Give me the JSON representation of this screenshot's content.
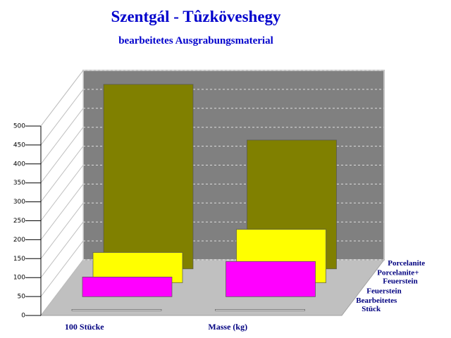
{
  "chart_data": {
    "type": "bar3d",
    "title": "Szentgál - Tûzköveshegy",
    "subtitle": "bearbeitetes Ausgrabungsmaterial",
    "categories": [
      "100 Stücke",
      "Masse (kg)"
    ],
    "series": [
      {
        "name": "Porcelanite",
        "color": "#808000",
        "values": [
          487,
          340
        ]
      },
      {
        "name": "Porcelanite+ Feuerstein",
        "color": "#ffff00",
        "values": [
          80,
          141
        ]
      },
      {
        "name": "Feuerstein",
        "color": "#ff00ff",
        "values": [
          52,
          93
        ]
      },
      {
        "name": "Bearbeitetes Stück",
        "color": "#ffffff",
        "values": [
          3,
          3
        ]
      }
    ],
    "ylim": [
      0,
      500
    ],
    "yticks": [
      0,
      50,
      100,
      150,
      200,
      250,
      300,
      350,
      400,
      450,
      500
    ],
    "grid": true
  }
}
